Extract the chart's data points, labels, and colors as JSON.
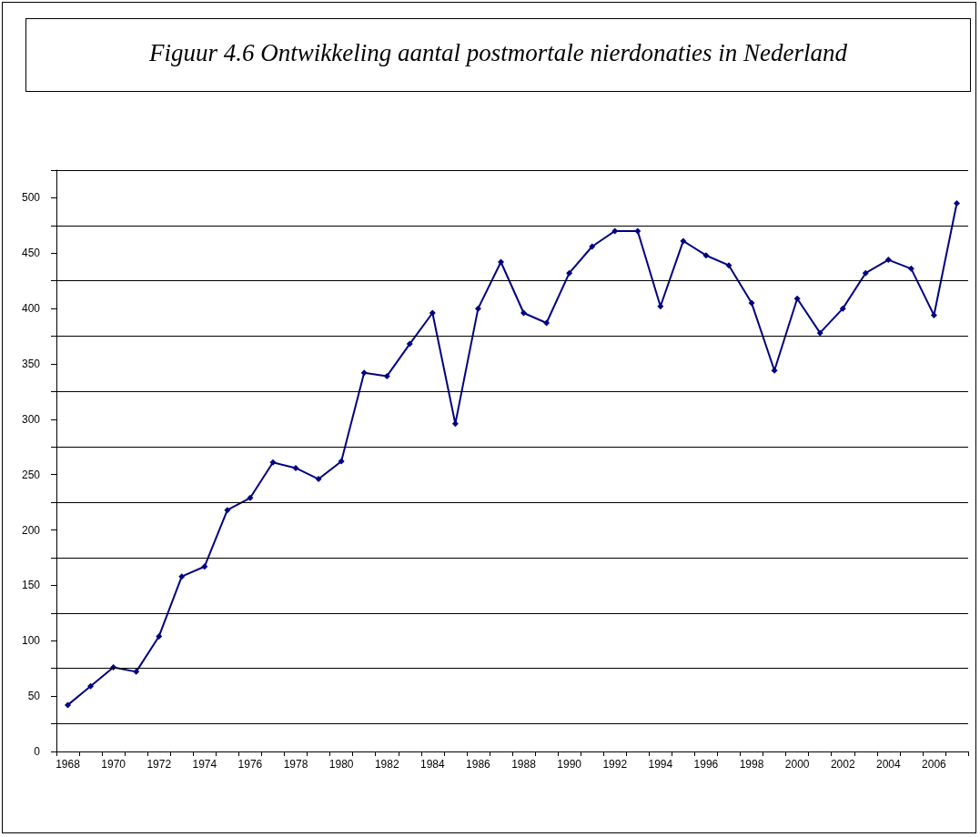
{
  "chart_data": {
    "type": "line",
    "title": "Figuur 4.6 Ontwikkeling aantal postmortale nierdonaties in Nederland",
    "categories": [
      "1968",
      null,
      "1970",
      null,
      "1972",
      null,
      "1974",
      null,
      "1976",
      null,
      "1978",
      null,
      "1980",
      null,
      "1982",
      null,
      "1984",
      null,
      "1986",
      null,
      "1988",
      null,
      "1990",
      null,
      "1992",
      null,
      "1994",
      null,
      "1996",
      null,
      "1998",
      null,
      "2000",
      null,
      "2002",
      null,
      "2004",
      null,
      "2006",
      null
    ],
    "series": [
      {
        "color": "#000080",
        "values": [
          42,
          59,
          76,
          72,
          104,
          158,
          167,
          218,
          229,
          261,
          256,
          246,
          262,
          342,
          339,
          368,
          396,
          296,
          400,
          442,
          396,
          387,
          432,
          456,
          470,
          470,
          402,
          461,
          448,
          439,
          405,
          344,
          409,
          378,
          400,
          432,
          444,
          436,
          394,
          495
        ]
      }
    ],
    "ylim": [
      0,
      525
    ],
    "yticks": [
      0,
      50,
      100,
      150,
      200,
      250,
      300,
      350,
      400,
      450,
      500,
      {
        "value": 25,
        "label": null
      },
      {
        "value": 75,
        "label": null
      },
      {
        "value": 125,
        "label": null
      },
      {
        "value": 175,
        "label": null
      },
      {
        "value": 225,
        "label": null
      },
      {
        "value": 275,
        "label": null
      },
      {
        "value": 325,
        "label": null
      },
      {
        "value": 375,
        "label": null
      },
      {
        "value": 425,
        "label": null
      },
      {
        "value": 475,
        "label": null
      },
      {
        "value": 525,
        "label": null
      }
    ],
    "grid": "y",
    "marker": "diamond",
    "line_style": "solid"
  }
}
